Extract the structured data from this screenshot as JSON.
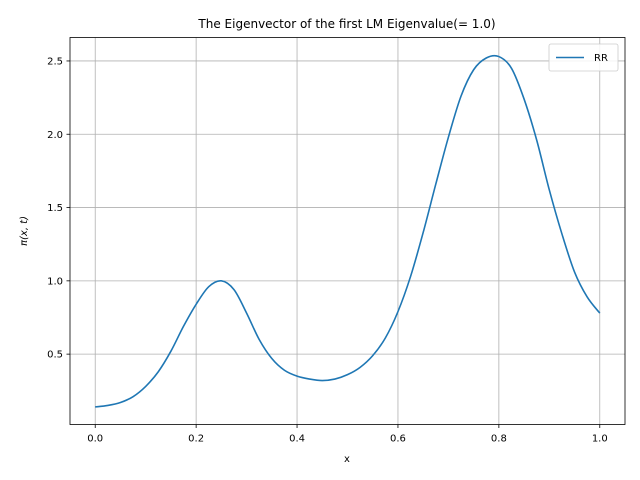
{
  "chart_data": {
    "type": "line",
    "title": "The Eigenvector of the first LM Eigenvalue(= 1.0)",
    "xlabel": "x",
    "ylabel": "π(x, t)",
    "xlim": [
      -0.05,
      1.05
    ],
    "ylim": [
      0.02,
      2.66
    ],
    "xticks": [
      0.0,
      0.2,
      0.4,
      0.6,
      0.8,
      1.0
    ],
    "xtick_labels": [
      "0.0",
      "0.2",
      "0.4",
      "0.6",
      "0.8",
      "1.0"
    ],
    "yticks": [
      0.5,
      1.0,
      1.5,
      2.0,
      2.5
    ],
    "ytick_labels": [
      "0.5",
      "1.0",
      "1.5",
      "2.0",
      "2.5"
    ],
    "grid": true,
    "legend_position": "top-right",
    "series": [
      {
        "name": "RR",
        "color": "#1f77b4",
        "x": [
          0.0,
          0.025,
          0.05,
          0.075,
          0.1,
          0.125,
          0.15,
          0.175,
          0.2,
          0.225,
          0.25,
          0.275,
          0.3,
          0.325,
          0.35,
          0.375,
          0.4,
          0.425,
          0.45,
          0.475,
          0.5,
          0.525,
          0.55,
          0.575,
          0.6,
          0.625,
          0.65,
          0.675,
          0.7,
          0.725,
          0.75,
          0.775,
          0.8,
          0.825,
          0.85,
          0.875,
          0.9,
          0.925,
          0.95,
          0.975,
          1.0
        ],
        "y": [
          0.14,
          0.15,
          0.17,
          0.21,
          0.28,
          0.38,
          0.52,
          0.69,
          0.84,
          0.96,
          1.0,
          0.94,
          0.78,
          0.6,
          0.47,
          0.39,
          0.35,
          0.33,
          0.32,
          0.33,
          0.36,
          0.41,
          0.49,
          0.61,
          0.79,
          1.03,
          1.33,
          1.66,
          1.98,
          2.26,
          2.44,
          2.52,
          2.53,
          2.45,
          2.24,
          1.96,
          1.62,
          1.32,
          1.06,
          0.89,
          0.78
        ]
      }
    ]
  }
}
